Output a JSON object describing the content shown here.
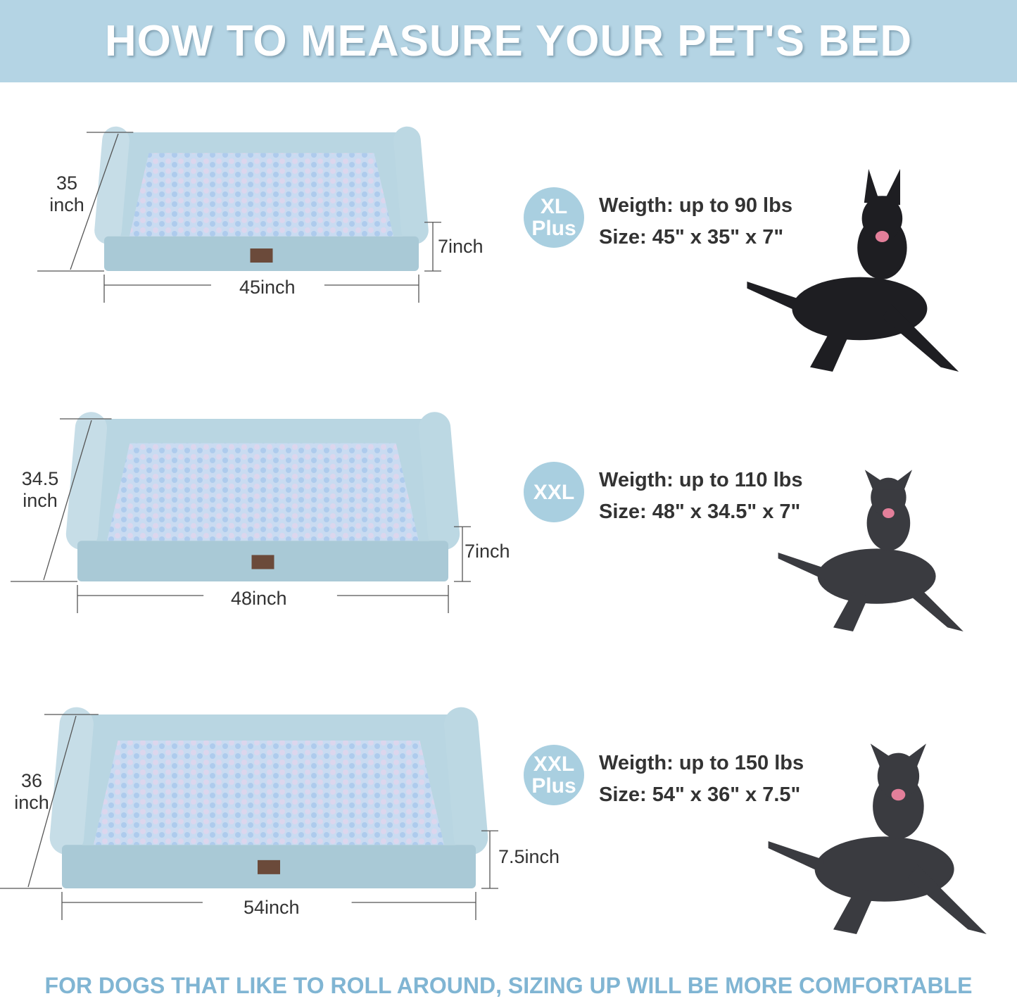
{
  "header": {
    "title": "HOW TO MEASURE YOUR PET'S BED",
    "background": "#b4d4e4"
  },
  "sizes": [
    {
      "badge_line1": "XL",
      "badge_line2": "Plus",
      "weight": "Weigth: up to 90 lbs",
      "size": "Size: 45\" x 35\" x 7\"",
      "depth_value": "35",
      "depth_unit": "inch",
      "width_label": "45inch",
      "height_label": "7inch",
      "dog_icon": "german-shepherd-photo"
    },
    {
      "badge_line1": "XXL",
      "badge_line2": "",
      "weight": "Weigth: up to 110 lbs",
      "size": "Size: 48\" x 34.5\" x 7\"",
      "depth_value": "34.5",
      "depth_unit": "inch",
      "width_label": "48inch",
      "height_label": "7inch",
      "dog_icon": "great-dane-photo"
    },
    {
      "badge_line1": "XXL",
      "badge_line2": "Plus",
      "weight": "Weigth: up to 150 lbs",
      "size": "Size: 54\" x 36\" x 7.5\"",
      "depth_value": "36",
      "depth_unit": "inch",
      "width_label": "54inch",
      "height_label": "7.5inch",
      "dog_icon": "cane-corso-photo"
    }
  ],
  "footer": {
    "text": "FOR DOGS THAT LIKE TO ROLL AROUND, SIZING UP WILL BE MORE COMFORTABLE",
    "color": "#80b5d3"
  },
  "colors": {
    "bed": "#b9d6e2",
    "cushion": "#c6d9f0",
    "badge": "#a9cfe0",
    "dog": "#2a2a2e"
  }
}
